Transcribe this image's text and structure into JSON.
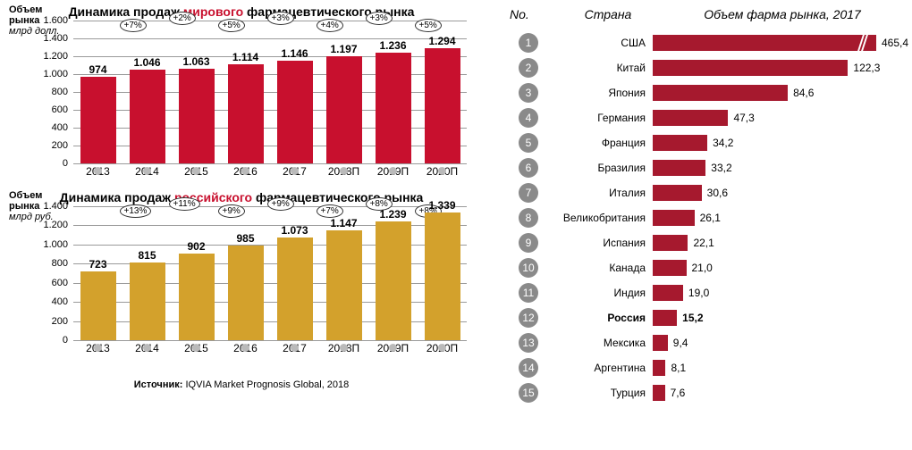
{
  "chart1": {
    "type": "bar",
    "title_pre": "Динамика продаж ",
    "title_hl": "мирового",
    "title_post": " фармацевтического рынка",
    "hl_color": "#c8102e",
    "ylabel_l1": "Объем рынка",
    "ylabel_l2": "млрд долл.",
    "ylim_max": 1600,
    "ytick_step": 200,
    "yticks": [
      "0",
      "200",
      "400",
      "600",
      "800",
      "1.000",
      "1.200",
      "1.400",
      "1.600"
    ],
    "categories": [
      "2013",
      "2014",
      "2015",
      "2016",
      "2017",
      "2018П",
      "2019П",
      "2020П"
    ],
    "values": [
      974,
      1046,
      1063,
      1114,
      1146,
      1197,
      1236,
      1294
    ],
    "labels": [
      "974",
      "1.046",
      "1.063",
      "1.114",
      "1.146",
      "1.197",
      "1.236",
      "1.294"
    ],
    "growth": [
      "",
      "+7%",
      "+2%",
      "+5%",
      "+3%",
      "+4%",
      "+3%",
      "+5%"
    ],
    "bar_color": "#c8102e",
    "grid_color": "#9a9a9a",
    "tick_fontsize": 12
  },
  "chart2": {
    "type": "bar",
    "title_pre": "Динамика продаж ",
    "title_hl": "российского",
    "title_post": " фармацевтического рынка",
    "hl_color": "#c8102e",
    "ylabel_l1": "Объем рынка",
    "ylabel_l2": "млрд руб.",
    "ylim_max": 1400,
    "ytick_step": 200,
    "yticks": [
      "0",
      "200",
      "400",
      "600",
      "800",
      "1.000",
      "1.200",
      "1.400"
    ],
    "categories": [
      "2013",
      "2014",
      "2015",
      "2016",
      "2017",
      "2018П",
      "2019П",
      "2020П"
    ],
    "values": [
      723,
      815,
      902,
      985,
      1073,
      1147,
      1239,
      1339
    ],
    "labels": [
      "723",
      "815",
      "902",
      "985",
      "1.073",
      "1.147",
      "1.239",
      "1.339"
    ],
    "growth": [
      "",
      "+13%",
      "+11%",
      "+9%",
      "+9%",
      "+7%",
      "+8%",
      "+8%"
    ],
    "bar_color": "#d3a12c",
    "grid_color": "#9a9a9a",
    "tick_fontsize": 12
  },
  "source_label": "Источник:",
  "source_text": " IQVIA Market Prognosis Global, 2018",
  "ranking": {
    "type": "bar-horizontal",
    "hdr_no": "No.",
    "hdr_country": "Страна",
    "hdr_value": "Объем фарма рынка, 2017",
    "bar_color": "#a6192e",
    "badge_color": "#8a8a8a",
    "max_draw": 140,
    "rows": [
      {
        "n": "1",
        "country": "США",
        "val": 465.4,
        "label": "465,4",
        "break": true,
        "bold": false
      },
      {
        "n": "2",
        "country": "Китай",
        "val": 122.3,
        "label": "122,3",
        "break": false,
        "bold": false
      },
      {
        "n": "3",
        "country": "Япония",
        "val": 84.6,
        "label": "84,6",
        "break": false,
        "bold": false
      },
      {
        "n": "4",
        "country": "Германия",
        "val": 47.3,
        "label": "47,3",
        "break": false,
        "bold": false
      },
      {
        "n": "5",
        "country": "Франция",
        "val": 34.2,
        "label": "34,2",
        "break": false,
        "bold": false
      },
      {
        "n": "6",
        "country": "Бразилия",
        "val": 33.2,
        "label": "33,2",
        "break": false,
        "bold": false
      },
      {
        "n": "7",
        "country": "Италия",
        "val": 30.6,
        "label": "30,6",
        "break": false,
        "bold": false
      },
      {
        "n": "8",
        "country": "Великобритания",
        "val": 26.1,
        "label": "26,1",
        "break": false,
        "bold": false
      },
      {
        "n": "9",
        "country": "Испания",
        "val": 22.1,
        "label": "22,1",
        "break": false,
        "bold": false
      },
      {
        "n": "10",
        "country": "Канада",
        "val": 21.0,
        "label": "21,0",
        "break": false,
        "bold": false
      },
      {
        "n": "11",
        "country": "Индия",
        "val": 19.0,
        "label": "19,0",
        "break": false,
        "bold": false
      },
      {
        "n": "12",
        "country": "Россия",
        "val": 15.2,
        "label": "15,2",
        "break": false,
        "bold": true
      },
      {
        "n": "13",
        "country": "Мексика",
        "val": 9.4,
        "label": "9,4",
        "break": false,
        "bold": false
      },
      {
        "n": "14",
        "country": "Аргентина",
        "val": 8.1,
        "label": "8,1",
        "break": false,
        "bold": false
      },
      {
        "n": "15",
        "country": "Турция",
        "val": 7.6,
        "label": "7,6",
        "break": false,
        "bold": false
      }
    ]
  }
}
